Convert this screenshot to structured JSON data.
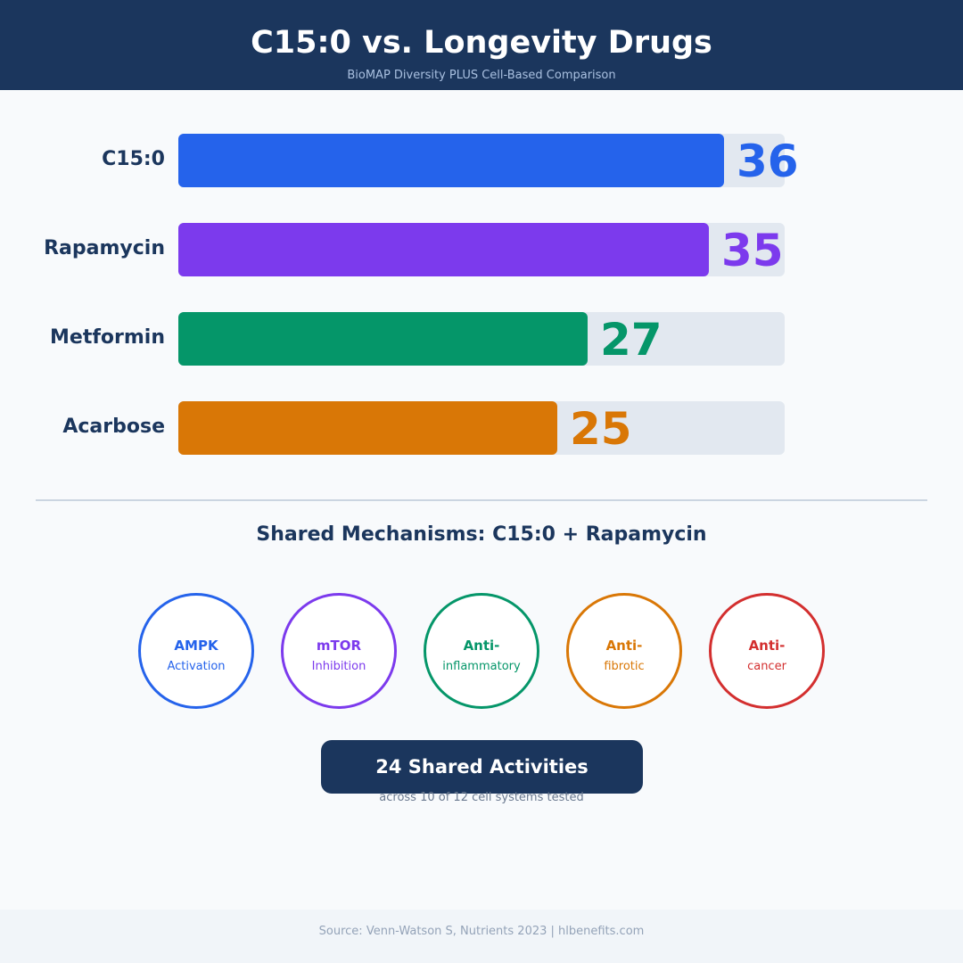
{
  "header": {
    "title": "C15:0 vs. Longevity Drugs",
    "subtitle": "BioMAP Diversity PLUS Cell-Based Comparison"
  },
  "chart_data": {
    "type": "bar",
    "orientation": "horizontal",
    "categories": [
      "C15:0",
      "Rapamycin",
      "Metformin",
      "Acarbose"
    ],
    "values": [
      36,
      35,
      27,
      25
    ],
    "colors": [
      "#2563eb",
      "#7c3aed",
      "#059669",
      "#d97706"
    ],
    "xlim": [
      0,
      40
    ],
    "grid": false,
    "data_labels": [
      "36",
      "35",
      "27",
      "25"
    ]
  },
  "mechanisms": {
    "title": "Shared Mechanisms: C15:0 + Rapamycin",
    "items": [
      {
        "line1": "AMPK",
        "line2": "Activation",
        "color": "#2563eb"
      },
      {
        "line1": "mTOR",
        "line2": "Inhibition",
        "color": "#7c3aed"
      },
      {
        "line1": "Anti-",
        "line2": "inflammatory",
        "color": "#059669"
      },
      {
        "line1": "Anti-",
        "line2": "fibrotic",
        "color": "#d97706"
      },
      {
        "line1": "Anti-",
        "line2": "cancer",
        "color": "#d32f2f"
      }
    ]
  },
  "summary": {
    "badge": "24 Shared Activities",
    "subtext": "across 10 of 12 cell systems tested"
  },
  "footer": {
    "source": "Source: Venn-Watson S, Nutrients 2023 | hlbenefits.com"
  }
}
